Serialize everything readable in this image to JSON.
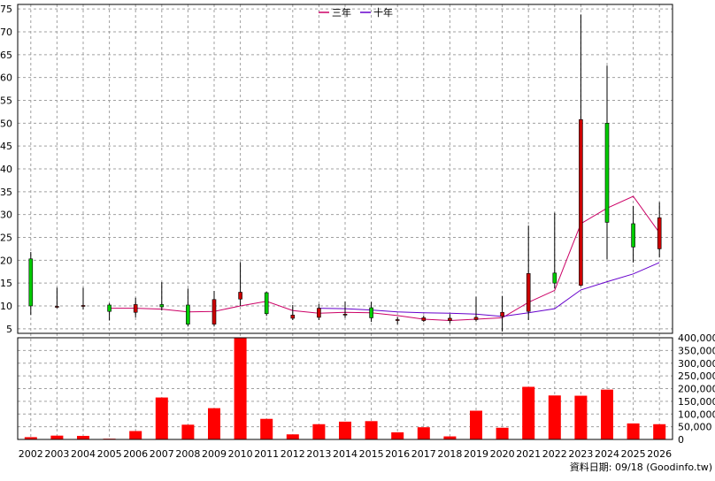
{
  "chart_data": {
    "type": "candlestick",
    "legend": {
      "placement": "top-center",
      "entries": [
        {
          "name": "三年",
          "color": "#cc0066"
        },
        {
          "name": "十年",
          "color": "#6600cc"
        }
      ]
    },
    "categories": [
      "2002",
      "2003",
      "2004",
      "2005",
      "2006",
      "2007",
      "2008",
      "2009",
      "2010",
      "2011",
      "2012",
      "2013",
      "2014",
      "2015",
      "2016",
      "2017",
      "2018",
      "2019",
      "2020",
      "2021",
      "2022",
      "2023",
      "2024",
      "2025",
      "2026"
    ],
    "price_axis": {
      "ylim": [
        4,
        76
      ],
      "ticks": [
        5,
        10,
        15,
        20,
        25,
        30,
        35,
        40,
        45,
        50,
        55,
        60,
        65,
        70,
        75
      ],
      "grid": true
    },
    "volume_axis": {
      "ylim": [
        0,
        400000
      ],
      "ticks": [
        0,
        50000,
        100000,
        150000,
        200000,
        250000,
        300000,
        350000,
        400000
      ],
      "tick_labels": [
        "0",
        "50,000",
        "100,000",
        "150,000",
        "200,000",
        "250,000",
        "300,000",
        "350,000",
        "400,000"
      ]
    },
    "candles": [
      {
        "open": 10.0,
        "close": 20.3,
        "high": 21.8,
        "low": 8.0
      },
      {
        "open": 9.9,
        "close": 9.8,
        "high": 14.0,
        "low": 9.5
      },
      {
        "open": 10.1,
        "close": 10.0,
        "high": 14.0,
        "low": 9.2
      },
      {
        "open": 8.8,
        "close": 10.2,
        "high": 10.6,
        "low": 6.8
      },
      {
        "open": 10.3,
        "close": 8.6,
        "high": 11.8,
        "low": 7.5
      },
      {
        "open": 9.8,
        "close": 10.3,
        "high": 15.2,
        "low": 9.0
      },
      {
        "open": 6.0,
        "close": 10.2,
        "high": 13.8,
        "low": 5.5
      },
      {
        "open": 11.4,
        "close": 6.0,
        "high": 13.3,
        "low": 5.5
      },
      {
        "open": 13.0,
        "close": 11.5,
        "high": 19.6,
        "low": 10.0
      },
      {
        "open": 8.3,
        "close": 12.9,
        "high": 13.1,
        "low": 7.8
      },
      {
        "open": 8.0,
        "close": 7.3,
        "high": 10.2,
        "low": 6.9
      },
      {
        "open": 9.5,
        "close": 7.5,
        "high": 10.4,
        "low": 6.9
      },
      {
        "open": 8.2,
        "close": 8.0,
        "high": 11.0,
        "low": 7.4
      },
      {
        "open": 7.4,
        "close": 9.6,
        "high": 10.9,
        "low": 6.5
      },
      {
        "open": 7.0,
        "close": 6.9,
        "high": 7.6,
        "low": 6.0
      },
      {
        "open": 7.4,
        "close": 6.8,
        "high": 7.9,
        "low": 6.5
      },
      {
        "open": 7.3,
        "close": 6.8,
        "high": 8.2,
        "low": 6.2
      },
      {
        "open": 7.5,
        "close": 7.0,
        "high": 12.0,
        "low": 6.6
      },
      {
        "open": 8.6,
        "close": 7.7,
        "high": 12.2,
        "low": 4.4
      },
      {
        "open": 17.1,
        "close": 8.8,
        "high": 27.6,
        "low": 6.9
      },
      {
        "open": 15.0,
        "close": 17.2,
        "high": 30.4,
        "low": 13.8
      },
      {
        "open": 50.8,
        "close": 14.5,
        "high": 73.8,
        "low": 14.3
      },
      {
        "open": 28.3,
        "close": 50.0,
        "high": 62.6,
        "low": 20.2
      },
      {
        "open": 22.9,
        "close": 28.0,
        "high": 31.9,
        "low": 19.5
      },
      {
        "open": 29.3,
        "close": 22.5,
        "high": 32.7,
        "low": 20.6
      }
    ],
    "series": [
      {
        "name": "三年",
        "values": [
          null,
          null,
          null,
          9.5,
          9.5,
          9.3,
          8.7,
          8.8,
          10.0,
          11.0,
          9.0,
          8.4,
          8.6,
          8.5,
          7.9,
          7.1,
          6.8,
          7.1,
          7.4,
          10.8,
          13.4,
          28.0,
          31.4,
          34.0,
          26.0
        ]
      },
      {
        "name": "十年",
        "values": [
          null,
          null,
          null,
          null,
          null,
          null,
          null,
          null,
          null,
          null,
          null,
          9.5,
          9.4,
          9.1,
          8.7,
          8.5,
          8.4,
          8.2,
          7.7,
          8.5,
          9.4,
          13.5,
          15.3,
          17.0,
          19.5
        ]
      }
    ],
    "volumes": [
      9000,
      15000,
      14000,
      3000,
      33000,
      165000,
      58000,
      123000,
      408000,
      81000,
      20000,
      60000,
      70000,
      72000,
      28000,
      48000,
      12000,
      113000,
      46000,
      207000,
      173000,
      172000,
      196000,
      63000,
      60000
    ],
    "colors": {
      "up": "#00cc00",
      "down": "#cc0000",
      "volume": "#ff0000",
      "wick": "#000000"
    },
    "footer": "資料日期: 09/18  (Goodinfo.tw)"
  }
}
